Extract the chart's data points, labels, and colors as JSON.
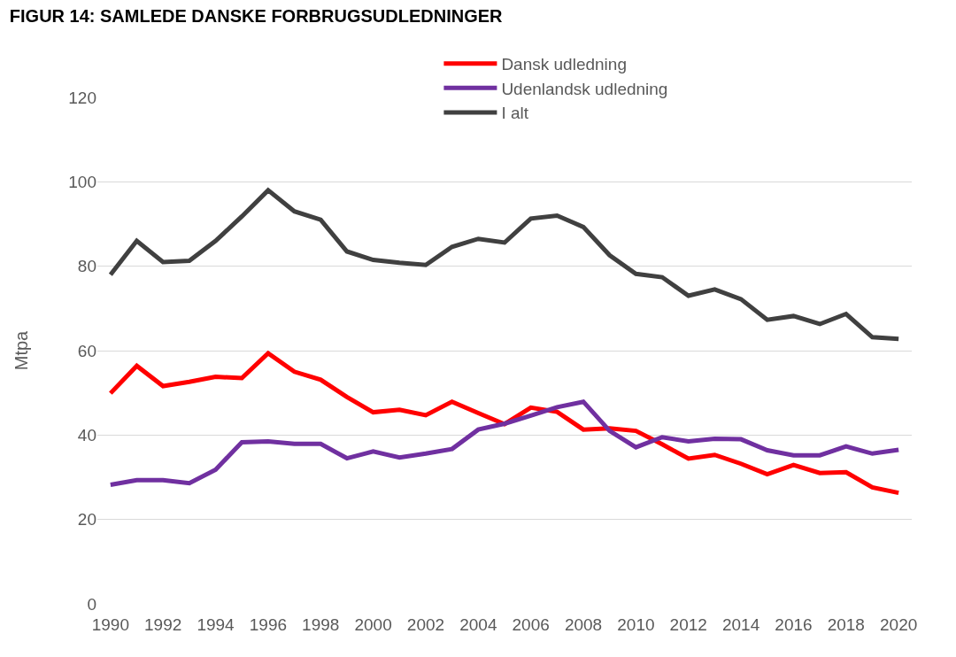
{
  "chart_data": {
    "type": "line",
    "title": "FIGUR 14: SAMLEDE DANSKE FORBRUGSUDLEDNINGER",
    "ylabel": "Mtpa",
    "x": [
      1990,
      1991,
      1992,
      1993,
      1994,
      1995,
      1996,
      1997,
      1998,
      1999,
      2000,
      2001,
      2002,
      2003,
      2004,
      2005,
      2006,
      2007,
      2008,
      2009,
      2010,
      2011,
      2012,
      2013,
      2014,
      2015,
      2016,
      2017,
      2018,
      2019,
      2020
    ],
    "series": [
      {
        "name": "Dansk udledning",
        "color": "#ff0000",
        "values": [
          49.9,
          56.4,
          51.6,
          52.6,
          53.8,
          53.5,
          59.4,
          55,
          53.1,
          49,
          45.4,
          46,
          44.7,
          47.9,
          45.2,
          42.6,
          46.5,
          45.5,
          41.3,
          41.6,
          41,
          37.8,
          34.4,
          35.3,
          33.2,
          30.7,
          32.9,
          31,
          31.2,
          27.6,
          26.3
        ]
      },
      {
        "name": "Udenlandsk udledning",
        "color": "#7030a0",
        "values": [
          28.2,
          29.3,
          29.3,
          28.6,
          31.8,
          38.3,
          38.5,
          37.9,
          37.9,
          34.5,
          36.1,
          34.7,
          35.6,
          36.7,
          41.3,
          42.7,
          44.6,
          46.6,
          47.9,
          41,
          37.1,
          39.5,
          38.5,
          39.1,
          39,
          36.4,
          35.2,
          35.2,
          37.3,
          35.6,
          36.5
        ]
      },
      {
        "name": "I alt",
        "color": "#404040",
        "values": [
          78,
          86,
          81,
          81.3,
          86,
          91.8,
          98,
          93,
          91,
          83.5,
          81.5,
          80.8,
          80.3,
          84.6,
          86.5,
          85.6,
          91.3,
          92,
          89.3,
          82.6,
          78.2,
          77.4,
          73,
          74.5,
          72.2,
          67.3,
          68.2,
          66.3,
          68.7,
          63.2,
          62.8
        ]
      }
    ],
    "xlim": [
      1989.5,
      2020.5
    ],
    "xticks": [
      1990,
      1992,
      1994,
      1996,
      1998,
      2000,
      2002,
      2004,
      2006,
      2008,
      2010,
      2012,
      2014,
      2016,
      2018,
      2020
    ],
    "ylim": [
      0,
      120
    ],
    "yticks": [
      0,
      20,
      40,
      60,
      80,
      100,
      120
    ],
    "grid": "y",
    "legend": "top",
    "marker": "none",
    "line_style": "solid"
  }
}
